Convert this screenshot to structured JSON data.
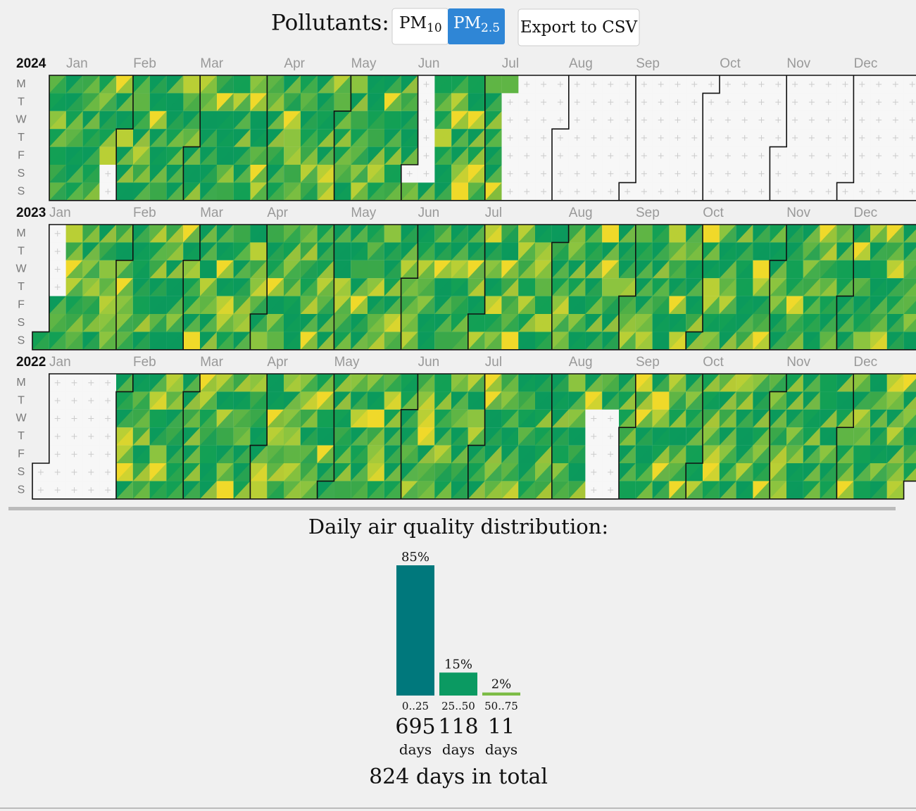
{
  "header": {
    "label": "Pollutants:",
    "pm10": {
      "text": "PM",
      "sub": "10"
    },
    "pm25": {
      "text": "PM",
      "sub": "2.5"
    },
    "export": "Export to CSV"
  },
  "calendar": {
    "years": [
      "2024",
      "2023",
      "2022"
    ],
    "months": [
      "Jan",
      "Feb",
      "Mar",
      "Apr",
      "May",
      "Jun",
      "Jul",
      "Aug",
      "Sep",
      "Oct",
      "Nov",
      "Dec"
    ],
    "weekdays": [
      "M",
      "T",
      "W",
      "T",
      "F",
      "S",
      "S"
    ]
  },
  "chart_data": {
    "type": "bar",
    "title": "Daily air quality distribution:",
    "categories": [
      "0..25",
      "25..50",
      "50..75"
    ],
    "values": [
      85,
      15,
      2
    ],
    "value_labels": [
      "85%",
      "15%",
      "2%"
    ],
    "colors": [
      "#00787c",
      "#0b9a62",
      "#7cbc45"
    ],
    "days": [
      695,
      118,
      11
    ],
    "days_unit": "days",
    "total": "824 days in total"
  }
}
